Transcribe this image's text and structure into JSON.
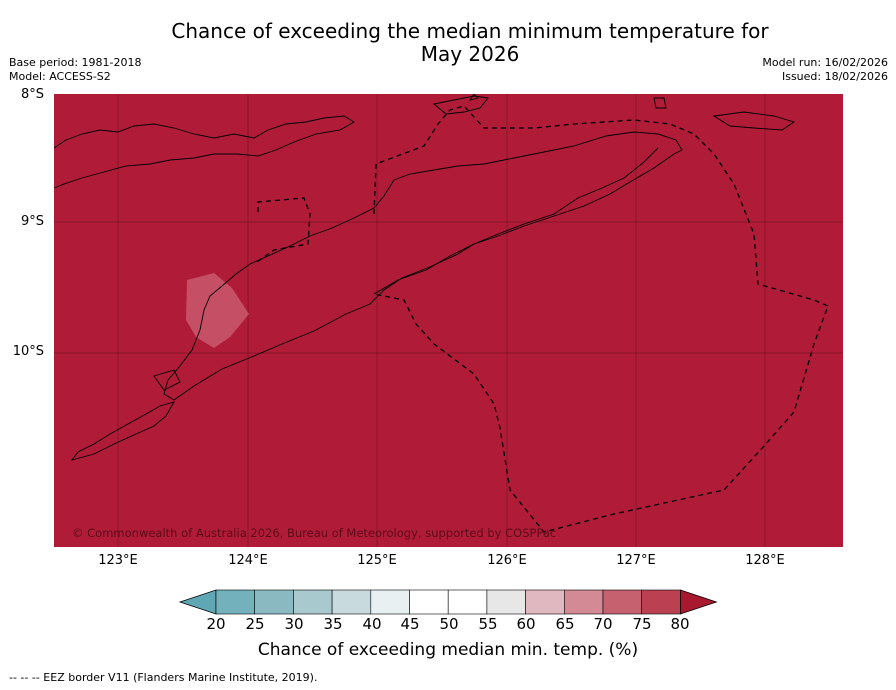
{
  "title_line1": "Chance of exceeding the median minimum temperature for",
  "title_line2": "May 2026",
  "meta": {
    "base_period": "Base period: 1981-2018",
    "model": "Model: ACCESS-S2",
    "model_run": "Model run: 16/02/2026",
    "issued": "Issued: 18/02/2026"
  },
  "map": {
    "lat_labels": [
      "8°S",
      "9°S",
      "10°S"
    ],
    "lon_labels": [
      "123°E",
      "124°E",
      "125°E",
      "126°E",
      "127°E",
      "128°E"
    ],
    "fill_color": "#b01c38",
    "copyright": "© Commonwealth of Australia 2026, Bureau of Meteorology, supported by COSPPac",
    "dominant_category": "80"
  },
  "colorbar": {
    "ticks": [
      "20",
      "25",
      "30",
      "35",
      "40",
      "45",
      "50",
      "55",
      "60",
      "65",
      "70",
      "75",
      "80"
    ],
    "colors": [
      "#5fa7b4",
      "#73b1bc",
      "#8bb9c2",
      "#a8c9cd",
      "#c8dade",
      "#e8f0f1",
      "#ffffff",
      "#ffffff",
      "#e7e7e7",
      "#e0b8c0",
      "#d48a95",
      "#c6626f",
      "#bb4152",
      "#a8192f"
    ],
    "title": "Chance of exceeding median min. temp. (%)"
  },
  "footer": "--  --  -- EEZ border V11 (Flanders Marine Institute, 2019)."
}
